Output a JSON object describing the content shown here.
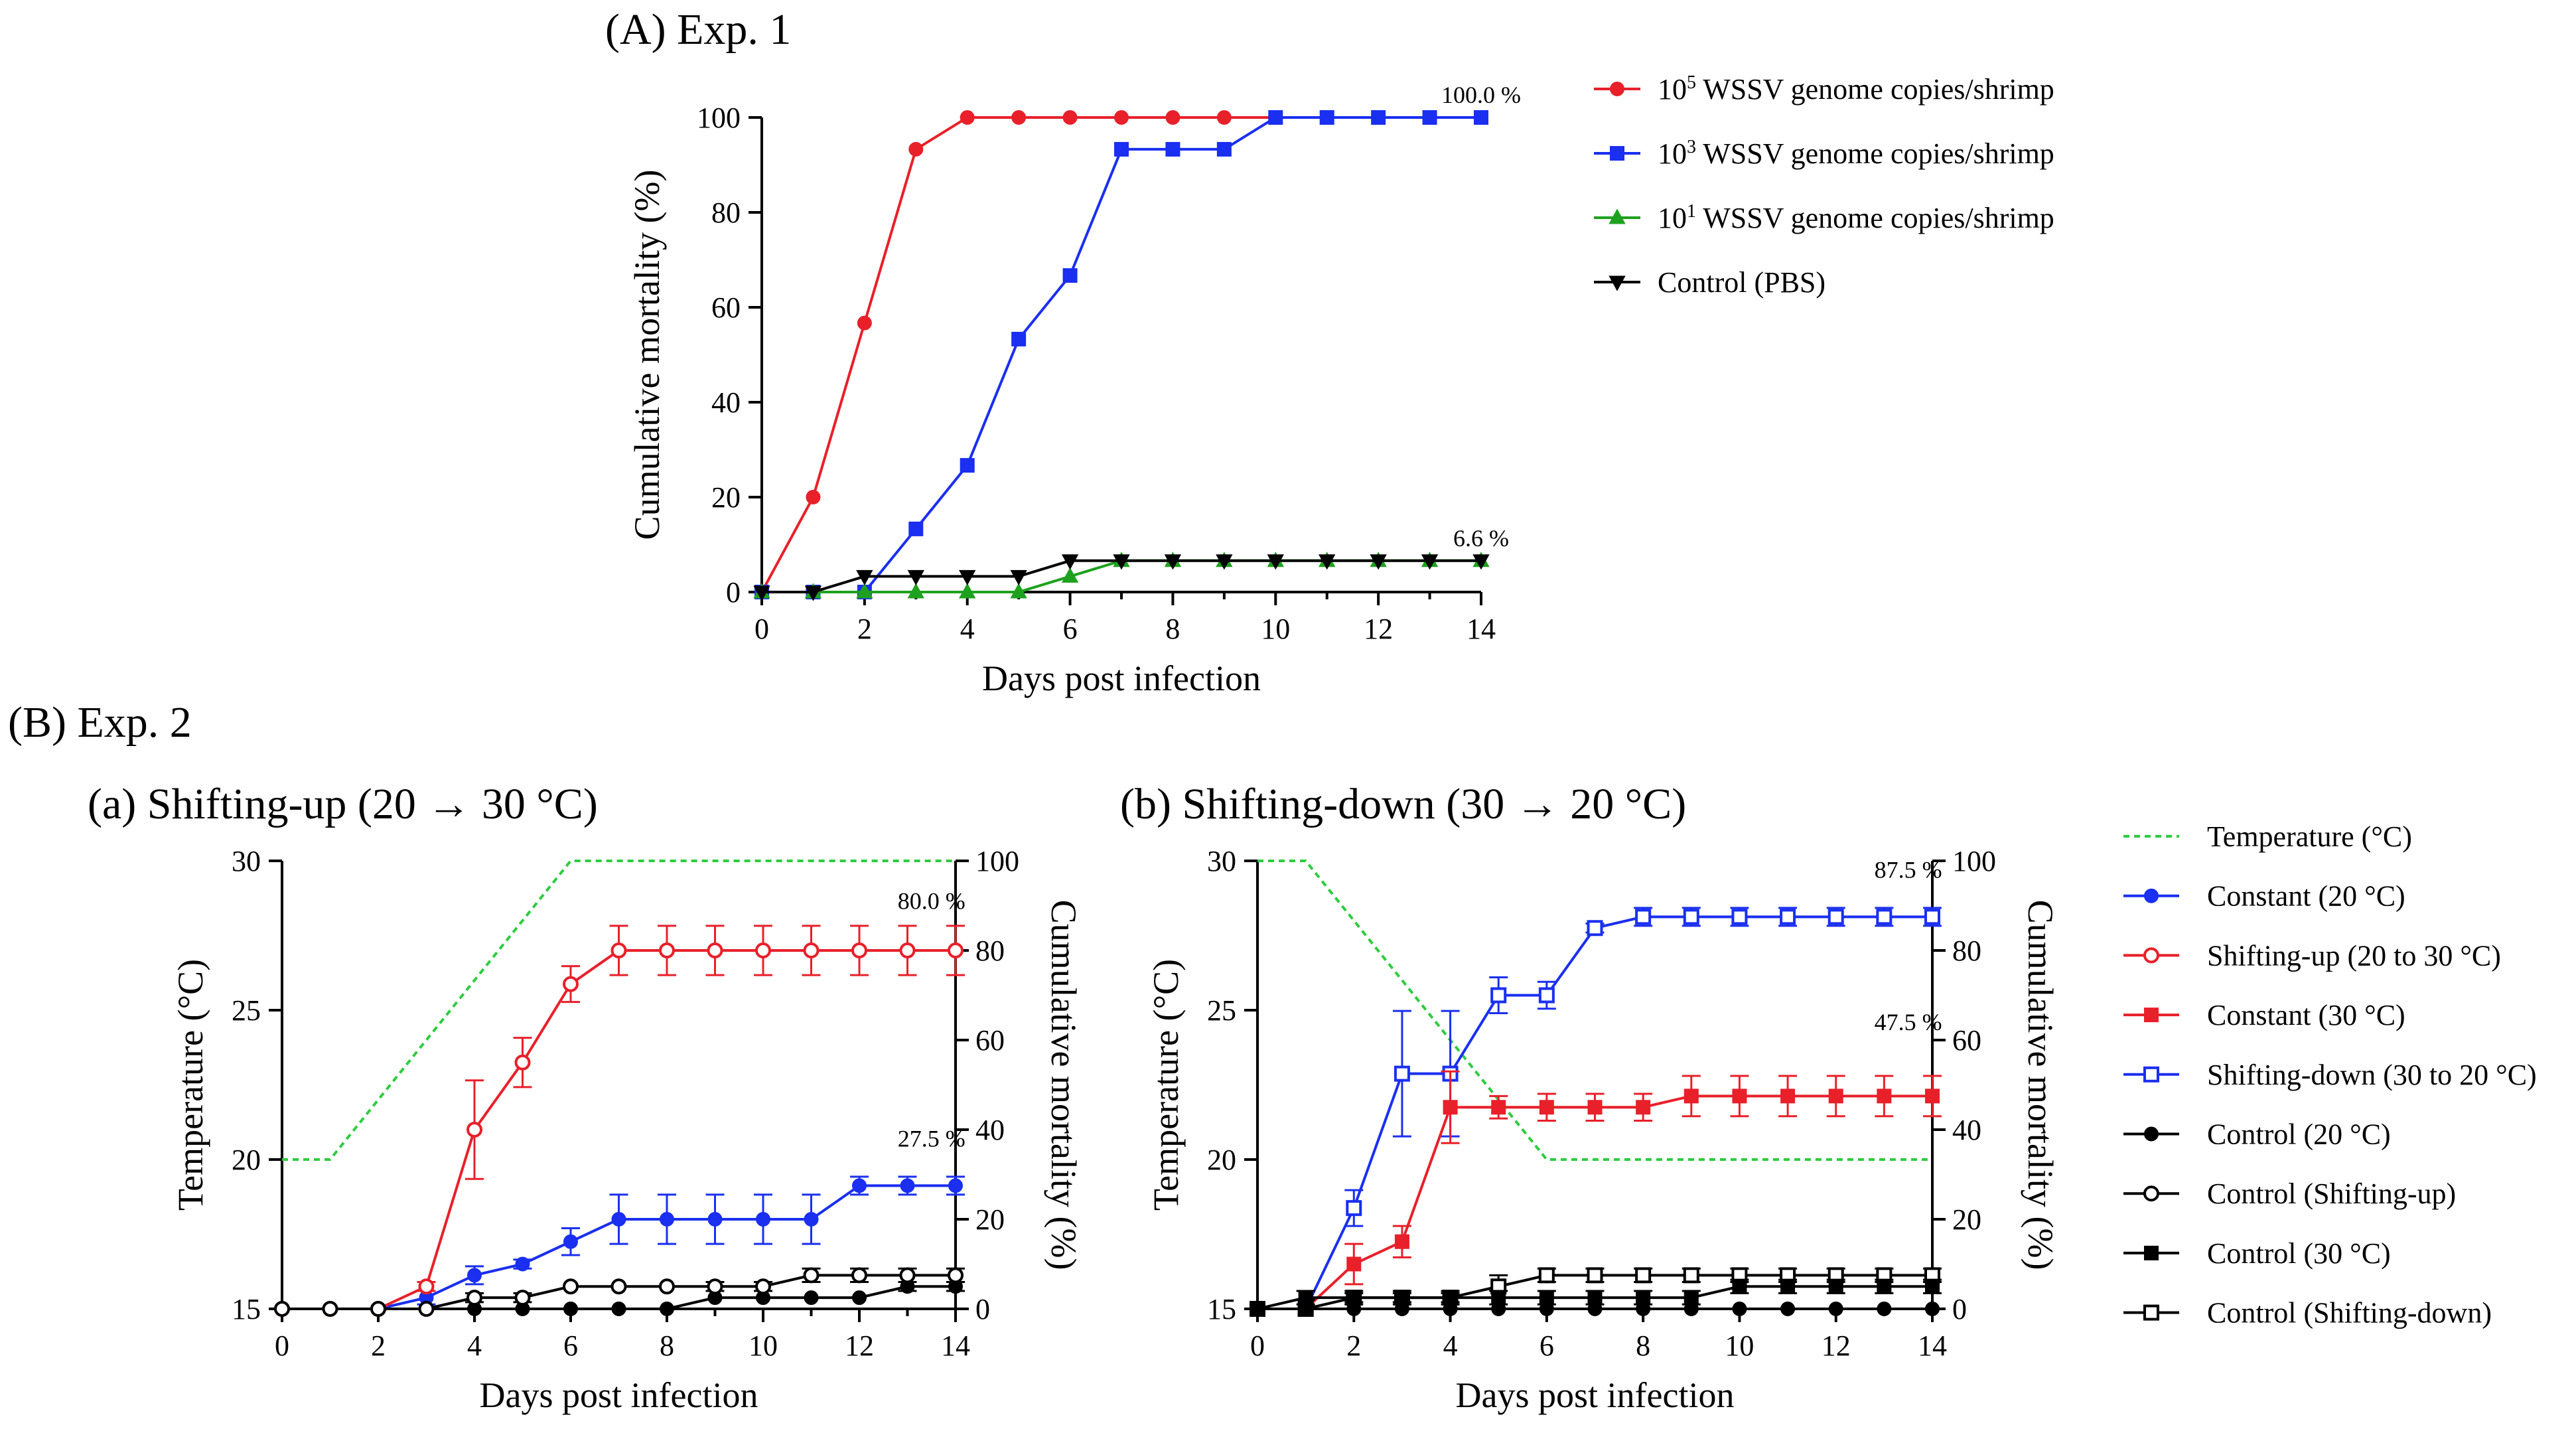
{
  "panel_labels": {
    "exp1": "(A) Exp. 1",
    "exp2": "(B) Exp. 2",
    "sub_a": "(a) Shifting-up (20 → 30 °C)",
    "sub_b": "(b) Shifting-down (30 → 20 °C)"
  },
  "legend_a": [
    {
      "base": "10",
      "sup": "5",
      "rest": " WSSV genome copies/shrimp",
      "color": "#e8202a",
      "marker": "circle"
    },
    {
      "base": "10",
      "sup": "3",
      "rest": " WSSV genome copies/shrimp",
      "color": "#1a2ff0",
      "marker": "square"
    },
    {
      "base": "10",
      "sup": "1",
      "rest": " WSSV genome copies/shrimp",
      "color": "#1ea11e",
      "marker": "triangle-up"
    },
    {
      "base": "",
      "sup": "",
      "rest": "Control (PBS)",
      "color": "#000000",
      "marker": "triangle-down"
    }
  ],
  "legend_b": [
    {
      "label": "Temperature (°C)",
      "color": "#2ecc40",
      "marker": "dashed"
    },
    {
      "label": "Constant (20 °C)",
      "color": "#1a2ff0",
      "marker": "circle"
    },
    {
      "label": "Shifting-up (20 to 30 °C)",
      "color": "#e8202a",
      "marker": "circle-open"
    },
    {
      "label": "Constant (30 °C)",
      "color": "#e8202a",
      "marker": "square"
    },
    {
      "label": "Shifting-down (30 to 20 °C)",
      "color": "#1a2ff0",
      "marker": "square-open"
    },
    {
      "label": "Control (20 °C)",
      "color": "#000000",
      "marker": "circle"
    },
    {
      "label": "Control (Shifting-up)",
      "color": "#000000",
      "marker": "circle-open"
    },
    {
      "label": "Control (30 °C)",
      "color": "#000000",
      "marker": "square"
    },
    {
      "label": "Control (Shifting-down)",
      "color": "#000000",
      "marker": "square-open"
    }
  ],
  "chart_data": [
    {
      "id": "A",
      "type": "line",
      "title": "(A) Exp. 1",
      "xlabel": "Days post infection",
      "ylabel": "Cumulative mortality (%)",
      "xlim": [
        0,
        14
      ],
      "ylim": [
        0,
        100
      ],
      "xticks": [
        0,
        2,
        4,
        6,
        8,
        10,
        12,
        14
      ],
      "yticks": [
        0,
        20,
        40,
        60,
        80,
        100
      ],
      "annotations": [
        {
          "text": "100.0 %",
          "x": 14,
          "y": 100
        },
        {
          "text": "6.6 %",
          "x": 14,
          "y": 6.6
        }
      ],
      "series": [
        {
          "name": "10^5 WSSV genome copies/shrimp",
          "color": "#e8202a",
          "marker": "circle",
          "x": [
            0,
            1,
            2,
            3,
            4,
            5,
            6,
            7,
            8,
            9,
            10,
            11,
            12,
            13,
            14
          ],
          "y": [
            0,
            20,
            56.7,
            93.3,
            100,
            100,
            100,
            100,
            100,
            100,
            100,
            100,
            100,
            100,
            100
          ]
        },
        {
          "name": "10^3 WSSV genome copies/shrimp",
          "color": "#1a2ff0",
          "marker": "square",
          "x": [
            0,
            1,
            2,
            3,
            4,
            5,
            6,
            7,
            8,
            9,
            10,
            11,
            12,
            13,
            14
          ],
          "y": [
            0,
            0,
            0,
            13.3,
            26.7,
            53.3,
            66.7,
            93.3,
            93.3,
            93.3,
            100,
            100,
            100,
            100,
            100
          ]
        },
        {
          "name": "10^1 WSSV genome copies/shrimp",
          "color": "#1ea11e",
          "marker": "triangle-up",
          "x": [
            0,
            1,
            2,
            3,
            4,
            5,
            6,
            7,
            8,
            9,
            10,
            11,
            12,
            13,
            14
          ],
          "y": [
            0,
            0,
            0,
            0,
            0,
            0,
            3.3,
            6.6,
            6.6,
            6.6,
            6.6,
            6.6,
            6.6,
            6.6,
            6.6
          ]
        },
        {
          "name": "Control (PBS)",
          "color": "#000000",
          "marker": "triangle-down",
          "x": [
            0,
            1,
            2,
            3,
            4,
            5,
            6,
            7,
            8,
            9,
            10,
            11,
            12,
            13,
            14
          ],
          "y": [
            0,
            0,
            3.3,
            3.3,
            3.3,
            3.3,
            6.6,
            6.6,
            6.6,
            6.6,
            6.6,
            6.6,
            6.6,
            6.6,
            6.6
          ]
        }
      ]
    },
    {
      "id": "Ba",
      "type": "line",
      "title": "(a) Shifting-up (20 → 30 °C)",
      "xlabel": "Days post infection",
      "ylabel_left": "Temperature (°C)",
      "ylabel_right": "Cumulative mortality (%)",
      "xlim": [
        0,
        14
      ],
      "ylim_left": [
        15,
        30
      ],
      "ylim_right": [
        0,
        100
      ],
      "xticks": [
        0,
        2,
        4,
        6,
        8,
        10,
        12,
        14
      ],
      "yticks_left": [
        15,
        20,
        25,
        30
      ],
      "yticks_right": [
        0,
        20,
        40,
        60,
        80,
        100
      ],
      "annotations": [
        {
          "text": "80.0 %",
          "x": 13.5,
          "y": 86
        },
        {
          "text": "27.5 %",
          "x": 13.5,
          "y": 33
        }
      ],
      "temperature": {
        "name": "Temperature (°C)",
        "x": [
          0,
          1,
          6,
          14
        ],
        "y": [
          20,
          20,
          30,
          30
        ]
      },
      "series": [
        {
          "name": "Constant (20 °C)",
          "color": "#1a2ff0",
          "marker": "circle",
          "x": [
            0,
            1,
            2,
            3,
            4,
            5,
            6,
            7,
            8,
            9,
            10,
            11,
            12,
            13,
            14
          ],
          "y": [
            0,
            0,
            0,
            2.5,
            7.5,
            10,
            15,
            20,
            20,
            20,
            20,
            20,
            27.5,
            27.5,
            27.5
          ],
          "err": [
            0,
            0,
            0,
            1.5,
            2,
            1,
            3,
            5.5,
            5.5,
            5.5,
            5.5,
            5.5,
            2,
            2,
            2
          ]
        },
        {
          "name": "Shifting-up (20 to 30 °C)",
          "color": "#e8202a",
          "marker": "circle-open",
          "x": [
            0,
            1,
            2,
            3,
            4,
            5,
            6,
            7,
            8,
            9,
            10,
            11,
            12,
            13,
            14
          ],
          "y": [
            0,
            0,
            0,
            5,
            40,
            55,
            72.5,
            80,
            80,
            80,
            80,
            80,
            80,
            80,
            80
          ],
          "err": [
            0,
            0,
            0,
            1,
            11,
            5.5,
            4,
            5.5,
            5.5,
            5.5,
            5.5,
            5.5,
            5.5,
            5.5,
            5.5
          ]
        },
        {
          "name": "Control (20 °C)",
          "color": "#000000",
          "marker": "circle",
          "x": [
            0,
            1,
            2,
            3,
            4,
            5,
            6,
            7,
            8,
            9,
            10,
            11,
            12,
            13,
            14
          ],
          "y": [
            0,
            0,
            0,
            0,
            0,
            0,
            0,
            0,
            0,
            2.5,
            2.5,
            2.5,
            2.5,
            5,
            5
          ],
          "err": [
            0,
            0,
            0,
            0,
            0,
            0,
            0,
            0,
            0,
            0,
            0,
            0,
            0,
            1,
            1
          ]
        },
        {
          "name": "Control (Shifting-up)",
          "color": "#000000",
          "marker": "circle-open",
          "x": [
            0,
            1,
            2,
            3,
            4,
            5,
            6,
            7,
            8,
            9,
            10,
            11,
            12,
            13,
            14
          ],
          "y": [
            0,
            0,
            0,
            0,
            2.5,
            2.5,
            5,
            5,
            5,
            5,
            5,
            7.5,
            7.5,
            7.5,
            7.5
          ],
          "err": [
            0,
            0,
            0,
            0,
            1,
            1,
            0,
            0,
            0,
            1,
            1,
            1.5,
            1.5,
            1.5,
            1.5
          ]
        }
      ]
    },
    {
      "id": "Bb",
      "type": "line",
      "title": "(b) Shifting-down (30 → 20 °C)",
      "xlabel": "Days post infection",
      "ylabel_left": "Temperature (°C)",
      "ylabel_right": "Cumulative mortality (%)",
      "xlim": [
        0,
        14
      ],
      "ylim_left": [
        15,
        30
      ],
      "ylim_right": [
        0,
        100
      ],
      "xticks": [
        0,
        2,
        4,
        6,
        8,
        10,
        12,
        14
      ],
      "yticks_left": [
        15,
        20,
        25,
        30
      ],
      "yticks_right": [
        0,
        20,
        40,
        60,
        80,
        100
      ],
      "annotations": [
        {
          "text": "87.5 %",
          "x": 13.5,
          "y": 93
        },
        {
          "text": "47.5 %",
          "x": 13.5,
          "y": 59
        }
      ],
      "temperature": {
        "name": "Temperature (°C)",
        "x": [
          0,
          1,
          6,
          14
        ],
        "y": [
          30,
          30,
          20,
          20
        ]
      },
      "series": [
        {
          "name": "Shifting-down (30 to 20 °C)",
          "color": "#1a2ff0",
          "marker": "square-open",
          "x": [
            0,
            1,
            2,
            3,
            4,
            5,
            6,
            7,
            8,
            9,
            10,
            11,
            12,
            13,
            14
          ],
          "y": [
            0,
            0,
            22.5,
            52.5,
            52.5,
            70,
            70,
            85,
            87.5,
            87.5,
            87.5,
            87.5,
            87.5,
            87.5,
            87.5
          ],
          "err": [
            0,
            0,
            4,
            14,
            14,
            4,
            3,
            1,
            2,
            2,
            2,
            2,
            2,
            2,
            2
          ]
        },
        {
          "name": "Constant (30 °C)",
          "color": "#e8202a",
          "marker": "square",
          "x": [
            0,
            1,
            2,
            3,
            4,
            5,
            6,
            7,
            8,
            9,
            10,
            11,
            12,
            13,
            14
          ],
          "y": [
            0,
            0,
            10,
            15,
            45,
            45,
            45,
            45,
            45,
            47.5,
            47.5,
            47.5,
            47.5,
            47.5,
            47.5
          ],
          "err": [
            0,
            0,
            4.5,
            3.5,
            8,
            2.5,
            3,
            3,
            3,
            4.5,
            4.5,
            4.5,
            4.5,
            4.5,
            4.5
          ]
        },
        {
          "name": "Control (Shifting-down)",
          "color": "#000000",
          "marker": "square-open",
          "x": [
            0,
            1,
            2,
            3,
            4,
            5,
            6,
            7,
            8,
            9,
            10,
            11,
            12,
            13,
            14
          ],
          "y": [
            0,
            0,
            2.5,
            2.5,
            2.5,
            5,
            7.5,
            7.5,
            7.5,
            7.5,
            7.5,
            7.5,
            7.5,
            7.5,
            7.5
          ],
          "err": [
            0,
            2,
            1,
            1,
            1,
            2.5,
            1.5,
            1.5,
            1.5,
            1.5,
            1.5,
            1.5,
            1.5,
            1.5,
            1.5
          ]
        },
        {
          "name": "Control (30 °C)",
          "color": "#000000",
          "marker": "square",
          "x": [
            0,
            1,
            2,
            3,
            4,
            5,
            6,
            7,
            8,
            9,
            10,
            11,
            12,
            13,
            14
          ],
          "y": [
            0,
            2.5,
            2.5,
            2.5,
            2.5,
            2.5,
            2.5,
            2.5,
            2.5,
            2.5,
            5,
            5,
            5,
            5,
            5
          ],
          "err": [
            0,
            1.5,
            1.5,
            1.5,
            1.5,
            1.5,
            1.5,
            1.5,
            1.5,
            1.5,
            1.5,
            1.5,
            1.5,
            1.5,
            1.5
          ]
        },
        {
          "name": "Control (20 °C)",
          "color": "#000000",
          "marker": "circle",
          "x": [
            0,
            1,
            2,
            3,
            4,
            5,
            6,
            7,
            8,
            9,
            10,
            11,
            12,
            13,
            14
          ],
          "y": [
            0,
            0,
            0,
            0,
            0,
            0,
            0,
            0,
            0,
            0,
            0,
            0,
            0,
            0,
            0
          ],
          "err": [
            0,
            0,
            0,
            0,
            0,
            0,
            0,
            0,
            0,
            0,
            0,
            0,
            0,
            0,
            0
          ]
        }
      ]
    }
  ]
}
